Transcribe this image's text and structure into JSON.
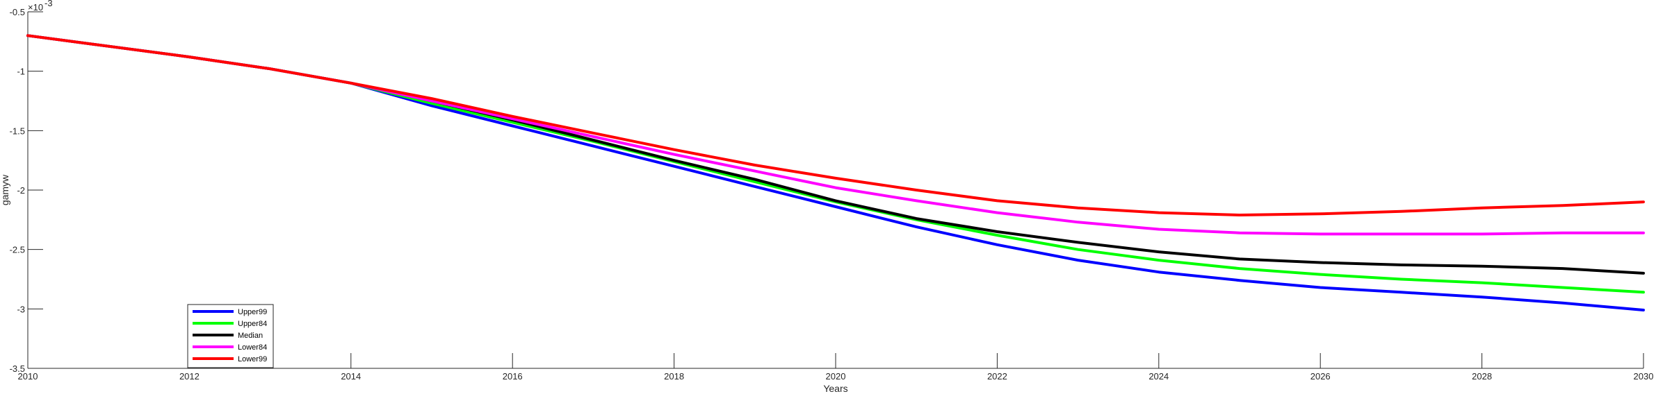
{
  "chart_data": {
    "type": "line",
    "title": "",
    "xlabel": "Years",
    "ylabel": "gamyw",
    "y_multiplier_label": "×10",
    "y_multiplier_exponent": "-3",
    "xlim": [
      2010,
      2030
    ],
    "ylim": [
      -3.5,
      -0.5
    ],
    "x_ticks": [
      2010,
      2012,
      2014,
      2016,
      2018,
      2020,
      2022,
      2024,
      2026,
      2028,
      2030
    ],
    "y_ticks": [
      -3.5,
      -3,
      -2.5,
      -2,
      -1.5,
      -1,
      -0.5
    ],
    "x": [
      2010,
      2011,
      2012,
      2013,
      2014,
      2015,
      2016,
      2017,
      2018,
      2019,
      2020,
      2021,
      2022,
      2023,
      2024,
      2025,
      2026,
      2027,
      2028,
      2029,
      2030
    ],
    "grid": false,
    "legend_position": "bottom-left",
    "series": [
      {
        "name": "Upper99",
        "color": "#0000ff",
        "values": [
          -0.7,
          -0.79,
          -0.88,
          -0.98,
          -1.1,
          -1.29,
          -1.46,
          -1.63,
          -1.8,
          -1.97,
          -2.14,
          -2.31,
          -2.46,
          -2.59,
          -2.69,
          -2.76,
          -2.82,
          -2.86,
          -2.9,
          -2.95,
          -3.01
        ]
      },
      {
        "name": "Upper84",
        "color": "#00ff00",
        "values": [
          -0.7,
          -0.79,
          -0.88,
          -0.98,
          -1.1,
          -1.27,
          -1.43,
          -1.59,
          -1.76,
          -1.93,
          -2.1,
          -2.25,
          -2.38,
          -2.5,
          -2.59,
          -2.66,
          -2.71,
          -2.75,
          -2.78,
          -2.82,
          -2.86
        ]
      },
      {
        "name": "Median",
        "color": "#000000",
        "values": [
          -0.7,
          -0.79,
          -0.88,
          -0.98,
          -1.1,
          -1.25,
          -1.41,
          -1.58,
          -1.75,
          -1.91,
          -2.09,
          -2.24,
          -2.35,
          -2.44,
          -2.52,
          -2.58,
          -2.61,
          -2.63,
          -2.64,
          -2.66,
          -2.7
        ]
      },
      {
        "name": "Lower84",
        "color": "#ff00ff",
        "values": [
          -0.7,
          -0.79,
          -0.88,
          -0.98,
          -1.1,
          -1.25,
          -1.4,
          -1.55,
          -1.7,
          -1.84,
          -1.98,
          -2.09,
          -2.19,
          -2.27,
          -2.33,
          -2.36,
          -2.37,
          -2.37,
          -2.37,
          -2.36,
          -2.36
        ]
      },
      {
        "name": "Lower99",
        "color": "#ff0000",
        "values": [
          -0.7,
          -0.79,
          -0.88,
          -0.98,
          -1.1,
          -1.23,
          -1.38,
          -1.52,
          -1.66,
          -1.79,
          -1.9,
          -2.0,
          -2.09,
          -2.15,
          -2.19,
          -2.21,
          -2.2,
          -2.18,
          -2.15,
          -2.13,
          -2.1
        ]
      }
    ]
  }
}
